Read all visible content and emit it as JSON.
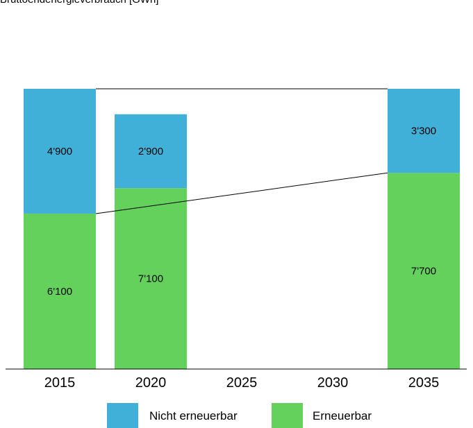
{
  "chart_data": {
    "type": "bar",
    "stacked": true,
    "title": "Bruttoendenergieverbrauch [GWh]",
    "categories": [
      "2015",
      "2020",
      "2025",
      "2030",
      "2035"
    ],
    "series": [
      {
        "name": "Erneuerbar",
        "values": [
          6100,
          7100,
          null,
          null,
          7700
        ],
        "labels": [
          "6'100",
          "7'100",
          "",
          "",
          "7'700"
        ]
      },
      {
        "name": "Nicht erneuerbar",
        "values": [
          4900,
          2900,
          null,
          null,
          3300
        ],
        "labels": [
          "4'900",
          "2'900",
          "",
          "",
          "3'300"
        ]
      }
    ],
    "trend_lines": [
      {
        "from": "2015",
        "to": "2035",
        "y_from": 11000,
        "y_to": 11000
      },
      {
        "from": "2015",
        "to": "2035",
        "y_from": 6100,
        "y_to": 7700
      }
    ],
    "ylim": [
      0,
      11000
    ],
    "grid": false,
    "legend_position": "bottom",
    "colors": {
      "Erneuerbar": "#63d15b",
      "Nicht erneuerbar": "#41b0d9"
    }
  }
}
